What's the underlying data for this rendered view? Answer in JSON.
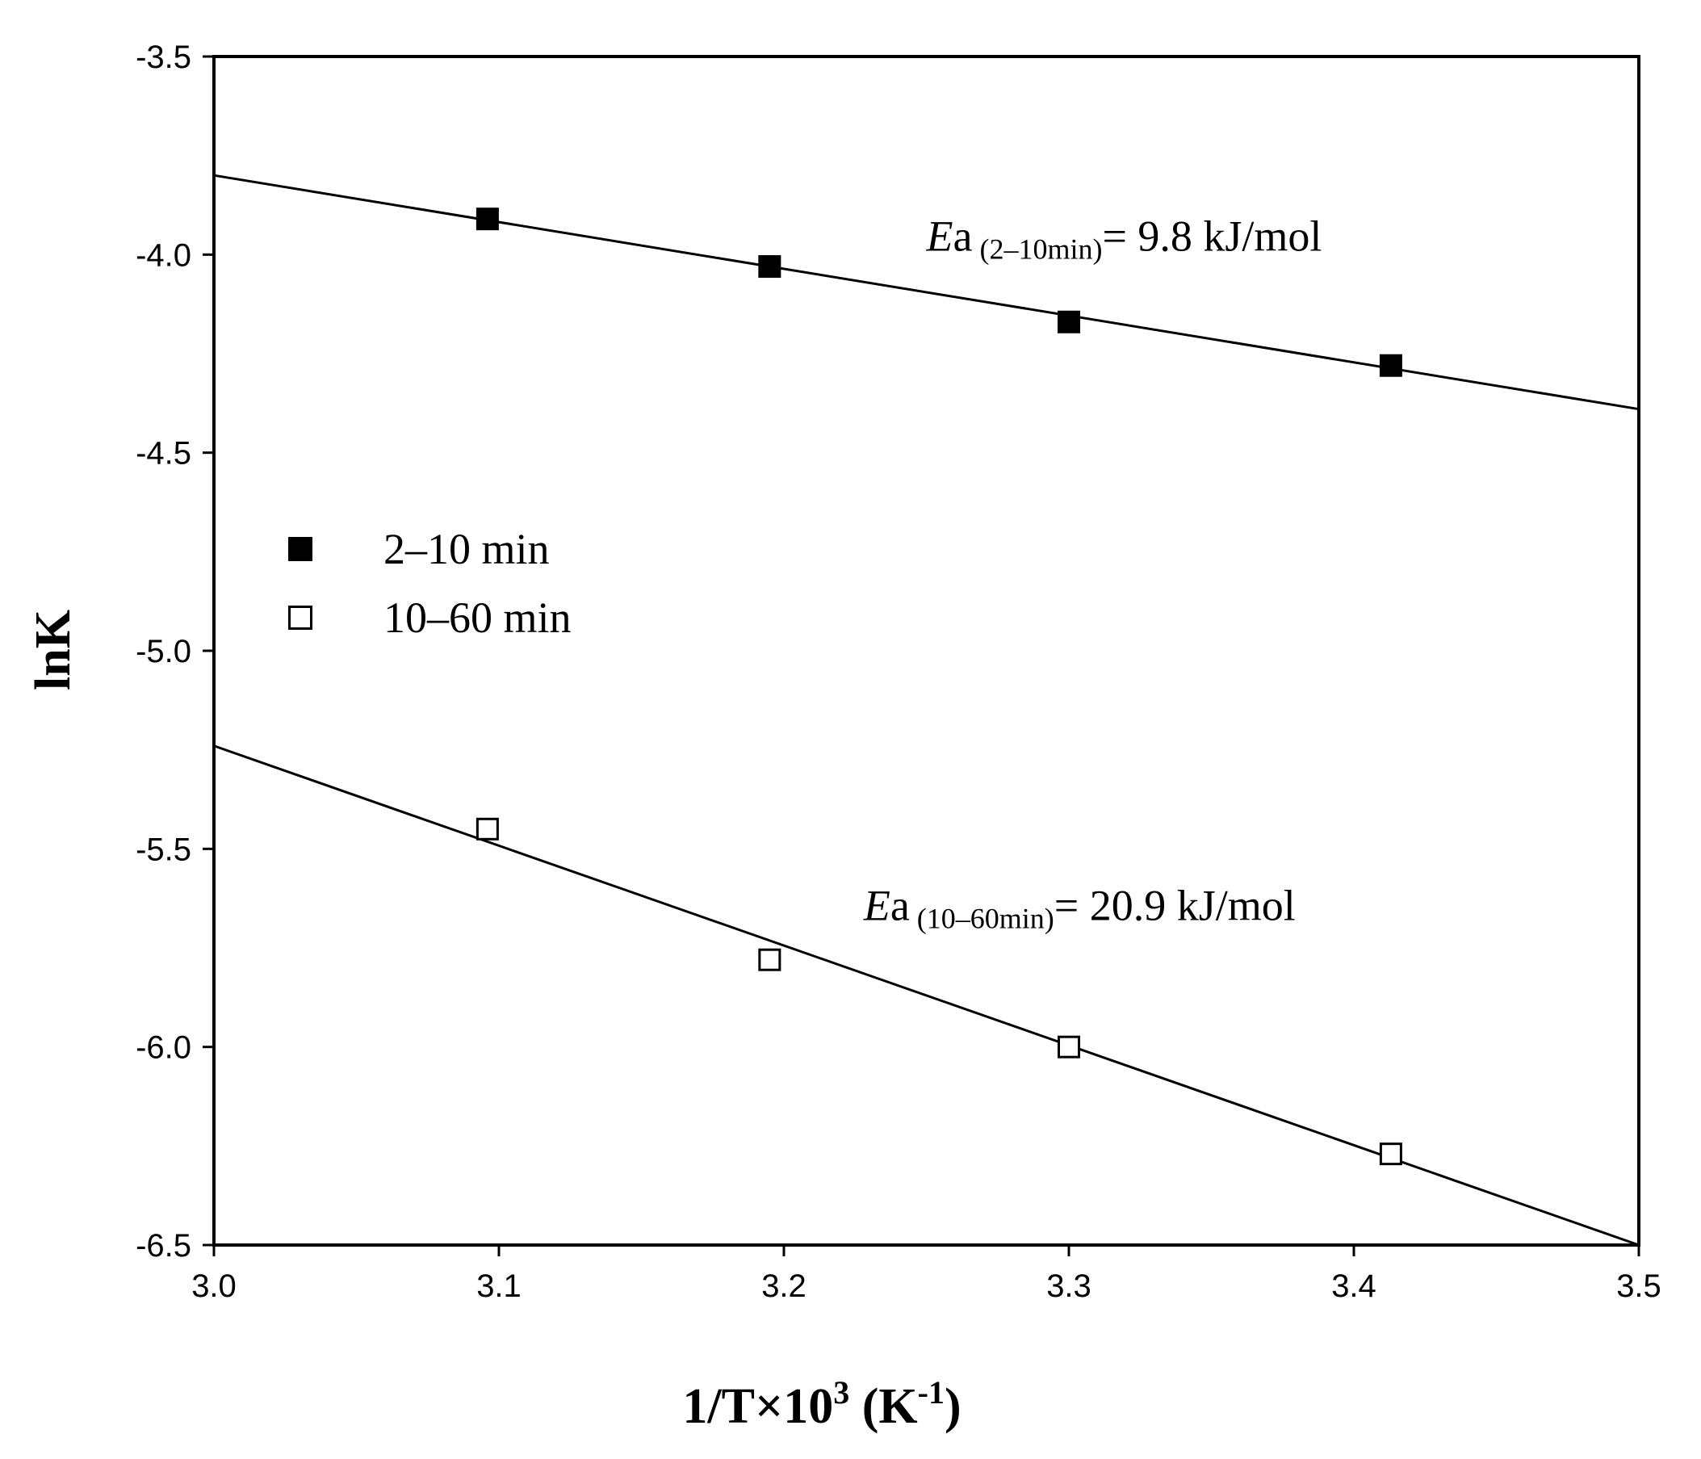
{
  "chart_data": {
    "type": "scatter",
    "xlabel": {
      "main": "1/T×10",
      "sup1": "3",
      "mid": " (K",
      "sup2": "-1",
      "end": ")"
    },
    "ylabel": "lnK",
    "xlim": [
      3.0,
      3.5
    ],
    "ylim": [
      -6.5,
      -3.5
    ],
    "xticks": [
      "3.0",
      "3.1",
      "3.2",
      "3.3",
      "3.4",
      "3.5"
    ],
    "yticks": [
      "-3.5",
      "-4.0",
      "-4.5",
      "-5.0",
      "-5.5",
      "-6.0",
      "-6.5"
    ],
    "grid": false,
    "legend_position": "center-left",
    "series": [
      {
        "name": "2–10 min",
        "marker": "filled-square",
        "x": [
          3.096,
          3.195,
          3.3,
          3.413
        ],
        "y": [
          -3.91,
          -4.03,
          -4.17,
          -4.28
        ],
        "fit": {
          "x": [
            3.0,
            3.5
          ],
          "y": [
            -3.8,
            -4.39
          ]
        }
      },
      {
        "name": "10–60 min",
        "marker": "open-square",
        "x": [
          3.096,
          3.195,
          3.3,
          3.413
        ],
        "y": [
          -5.45,
          -5.78,
          -6.0,
          -6.27
        ],
        "fit": {
          "x": [
            3.0,
            3.5
          ],
          "y": [
            -5.24,
            -6.5
          ]
        }
      }
    ],
    "annotations": [
      {
        "name": "ea-2-10",
        "italic": "E",
        "sub": "a",
        "sub2": " (2–10min)",
        "rest": "= 9.8 kJ/mol",
        "x": 3.25,
        "y": -3.99
      },
      {
        "name": "ea-10-60",
        "italic": "E",
        "sub": "a",
        "sub2": " (10–60min)",
        "rest": "= 20.9 kJ/mol",
        "x": 3.228,
        "y": -5.68
      }
    ],
    "colors": {
      "axis": "#000000",
      "marker": "#000000",
      "fill_open": "#ffffff"
    }
  }
}
